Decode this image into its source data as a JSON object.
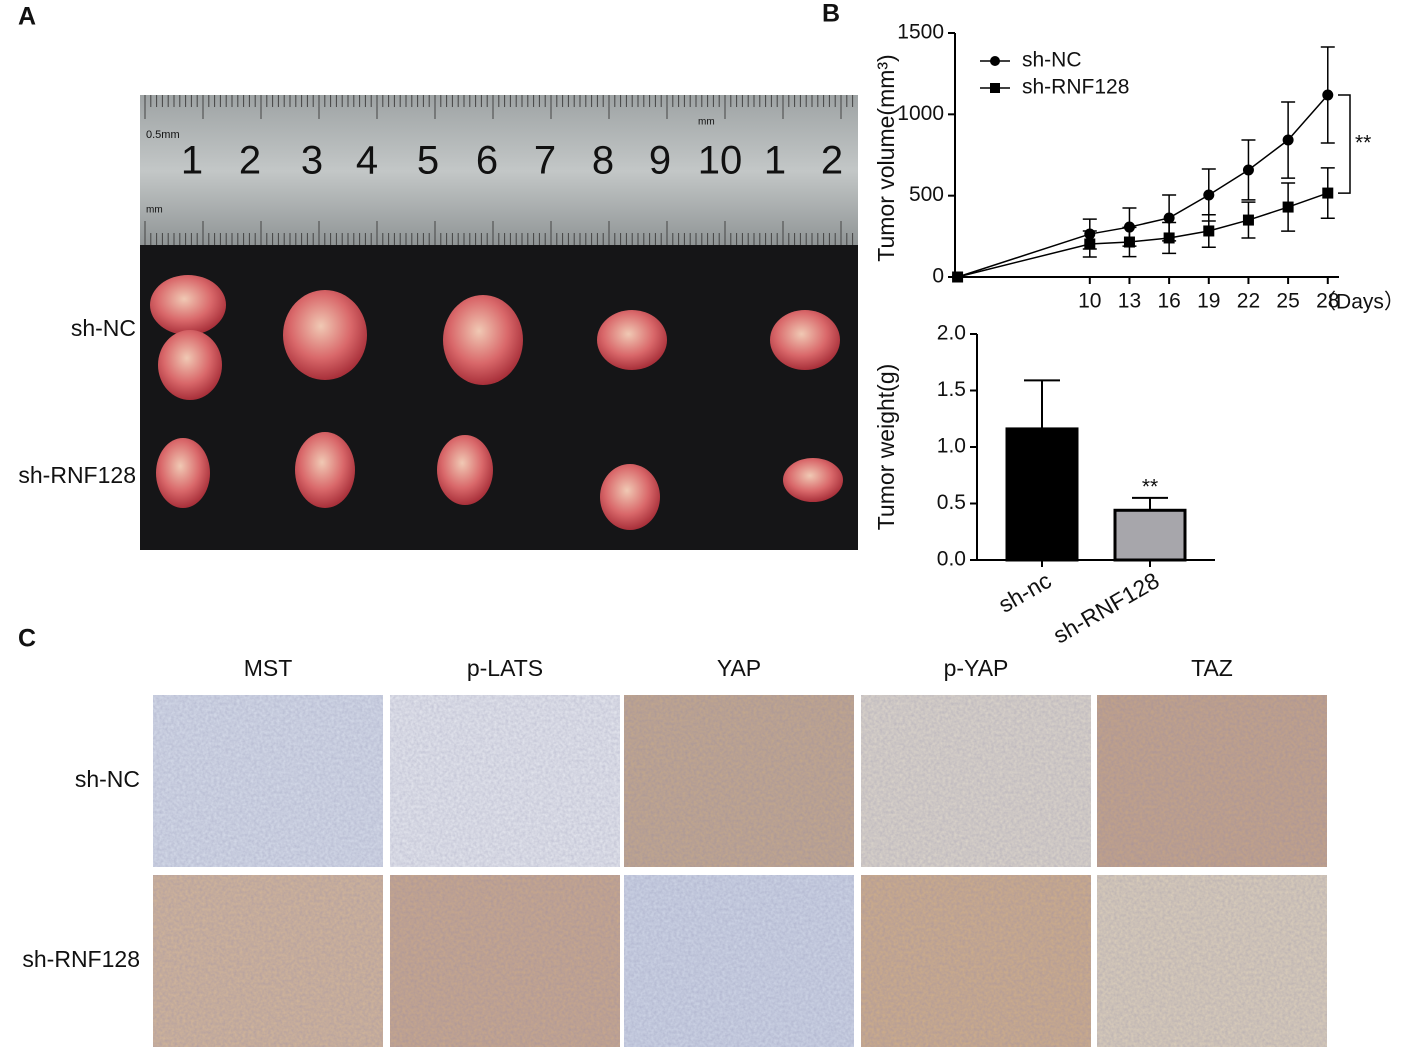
{
  "panel_labels": [
    "A",
    "B",
    "C"
  ],
  "panel_a": {
    "rows": [
      "sh-NC",
      "sh-RNF128"
    ],
    "ruler": {
      "unit_top": "0.5mm",
      "unit_mid": "mm",
      "unit_low": "mm",
      "numbers": [
        "1",
        "2",
        "3",
        "4",
        "5",
        "6",
        "7",
        "8",
        "9",
        "10",
        "1",
        "2"
      ]
    }
  },
  "chart_data": [
    {
      "type": "line",
      "y_label": "Tumor volume(mm³)",
      "x_label": "（Days）",
      "x": [
        0,
        10,
        13,
        16,
        19,
        22,
        25,
        28
      ],
      "xlim": [
        -0.8,
        29
      ],
      "xticks": [
        10,
        13,
        16,
        19,
        22,
        25,
        28
      ],
      "ylim": [
        0,
        1500
      ],
      "yticks": [
        0,
        500,
        1000,
        1500
      ],
      "series": [
        {
          "name": "sh-NC",
          "color": "#000000",
          "marker": "circle",
          "values": [
            0,
            264,
            307,
            363,
            504,
            658,
            842,
            1119
          ],
          "errors": [
            null,
            92,
            117,
            141,
            160,
            184,
            234,
            295
          ]
        },
        {
          "name": "sh-RNF128",
          "color": "#000000",
          "marker": "square",
          "values": [
            0,
            203,
            215,
            240,
            283,
            350,
            430,
            516
          ],
          "errors": [
            null,
            80,
            90,
            95,
            100,
            110,
            148,
            155
          ]
        }
      ],
      "legend": "upper left",
      "annotation": "**"
    },
    {
      "type": "bar",
      "y_label": "Tumor weight(g)",
      "categories": [
        "sh-nc",
        "sh-RNF128"
      ],
      "values": [
        1.16,
        0.44
      ],
      "errors": [
        0.43,
        0.11
      ],
      "colors": [
        "#000000",
        "#a7a6ab"
      ],
      "ylim": [
        0,
        2
      ],
      "yticks": [
        {
          "value": 0,
          "label": "0.0"
        },
        {
          "value": 0.5,
          "label": "0.5"
        },
        {
          "value": 1,
          "label": "1.0"
        },
        {
          "value": 1.5,
          "label": "1.5"
        },
        {
          "value": 2,
          "label": "2.0"
        }
      ],
      "annotation": "**"
    }
  ],
  "panel_c": {
    "columns": [
      "MST",
      "p-LATS",
      "YAP",
      "p-YAP",
      "TAZ"
    ],
    "rows": [
      "sh-NC",
      "sh-RNF128"
    ]
  }
}
